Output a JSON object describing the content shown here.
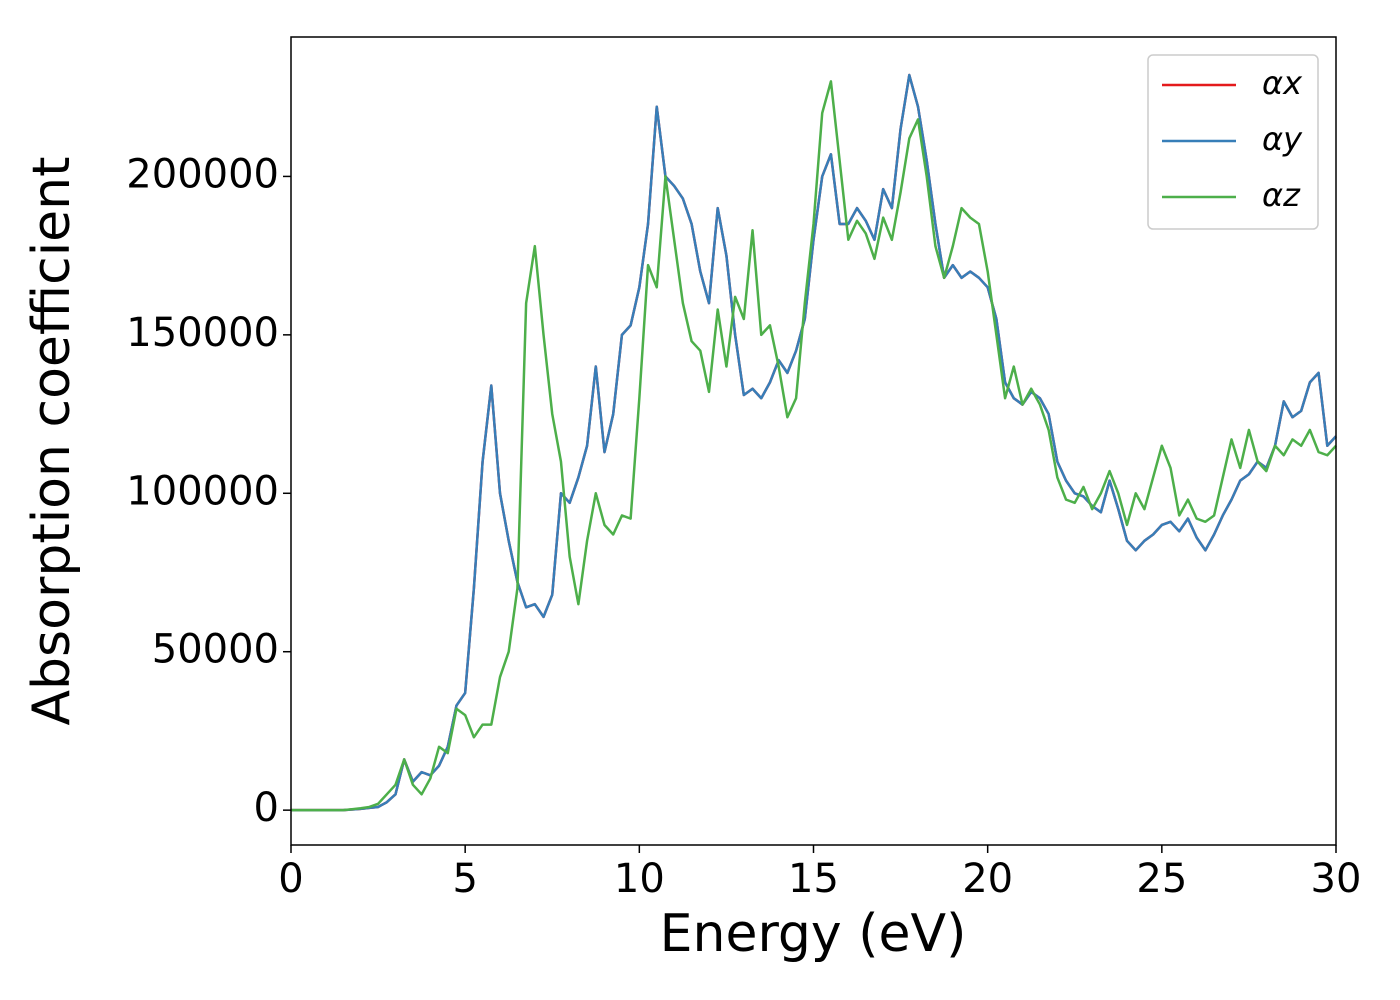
{
  "chart_data": {
    "type": "line",
    "xlabel": "Energy (eV)",
    "ylabel": "Absorption coefficient",
    "xlim": [
      0,
      30
    ],
    "xticks": [
      0,
      5,
      10,
      15,
      20,
      25,
      30
    ],
    "ylim": [
      -11000,
      244000
    ],
    "yticks": [
      0,
      50000,
      100000,
      150000,
      200000
    ],
    "legend": "upper right",
    "x": [
      0,
      0.25,
      0.5,
      0.75,
      1,
      1.25,
      1.5,
      1.75,
      2,
      2.25,
      2.5,
      2.75,
      3,
      3.25,
      3.5,
      3.75,
      4,
      4.25,
      4.5,
      4.75,
      5,
      5.25,
      5.5,
      5.75,
      6,
      6.25,
      6.5,
      6.75,
      7,
      7.25,
      7.5,
      7.75,
      8,
      8.25,
      8.5,
      8.75,
      9,
      9.25,
      9.5,
      9.75,
      10,
      10.25,
      10.5,
      10.75,
      11,
      11.25,
      11.5,
      11.75,
      12,
      12.25,
      12.5,
      12.75,
      13,
      13.25,
      13.5,
      13.75,
      14,
      14.25,
      14.5,
      14.75,
      15,
      15.25,
      15.5,
      15.75,
      16,
      16.25,
      16.5,
      16.75,
      17,
      17.25,
      17.5,
      17.75,
      18,
      18.25,
      18.5,
      18.75,
      19,
      19.25,
      19.5,
      19.75,
      20,
      20.25,
      20.5,
      20.75,
      21,
      21.25,
      21.5,
      21.75,
      22,
      22.25,
      22.5,
      22.75,
      23,
      23.25,
      23.5,
      23.75,
      24,
      24.25,
      24.5,
      24.75,
      25,
      25.25,
      25.5,
      25.75,
      26,
      26.25,
      26.5,
      26.75,
      27,
      27.25,
      27.5,
      27.75,
      28,
      28.25,
      28.5,
      28.75,
      29,
      29.25,
      29.5,
      29.75,
      30
    ],
    "series": [
      {
        "name": "αx",
        "color": "#e41a1c",
        "values": [
          0,
          0,
          0,
          0,
          0,
          0,
          0,
          200,
          400,
          700,
          1000,
          2500,
          5000,
          16000,
          9000,
          12000,
          11000,
          14000,
          20000,
          33000,
          37000,
          70000,
          110000,
          134000,
          100000,
          85000,
          72000,
          64000,
          65000,
          61000,
          68000,
          100000,
          97000,
          105000,
          115000,
          140000,
          113000,
          125000,
          150000,
          153000,
          165000,
          185000,
          222000,
          200000,
          197000,
          193000,
          185000,
          170000,
          160000,
          190000,
          175000,
          150000,
          131000,
          133000,
          130000,
          135000,
          142000,
          138000,
          145000,
          155000,
          180000,
          200000,
          207000,
          185000,
          185000,
          190000,
          186000,
          180000,
          196000,
          190000,
          215000,
          232000,
          222000,
          205000,
          185000,
          168000,
          172000,
          168000,
          170000,
          168000,
          165000,
          155000,
          135000,
          130000,
          128000,
          132000,
          130000,
          125000,
          110000,
          104000,
          100000,
          99000,
          96000,
          94000,
          104000,
          95000,
          85000,
          82000,
          85000,
          87000,
          90000,
          91000,
          88000,
          92000,
          86000,
          82000,
          87000,
          93000,
          98000,
          104000,
          106000,
          110000,
          108000,
          115000,
          129000,
          124000,
          126000,
          135000,
          138000,
          115000,
          118000
        ]
      },
      {
        "name": "αy",
        "color": "#377eb8",
        "values": [
          0,
          0,
          0,
          0,
          0,
          0,
          0,
          200,
          400,
          700,
          1000,
          2500,
          5000,
          16000,
          9000,
          12000,
          11000,
          14000,
          20000,
          33000,
          37000,
          70000,
          110000,
          134000,
          100000,
          85000,
          72000,
          64000,
          65000,
          61000,
          68000,
          100000,
          97000,
          105000,
          115000,
          140000,
          113000,
          125000,
          150000,
          153000,
          165000,
          185000,
          222000,
          200000,
          197000,
          193000,
          185000,
          170000,
          160000,
          190000,
          175000,
          150000,
          131000,
          133000,
          130000,
          135000,
          142000,
          138000,
          145000,
          155000,
          180000,
          200000,
          207000,
          185000,
          185000,
          190000,
          186000,
          180000,
          196000,
          190000,
          215000,
          232000,
          222000,
          205000,
          185000,
          168000,
          172000,
          168000,
          170000,
          168000,
          165000,
          155000,
          135000,
          130000,
          128000,
          132000,
          130000,
          125000,
          110000,
          104000,
          100000,
          99000,
          96000,
          94000,
          104000,
          95000,
          85000,
          82000,
          85000,
          87000,
          90000,
          91000,
          88000,
          92000,
          86000,
          82000,
          87000,
          93000,
          98000,
          104000,
          106000,
          110000,
          108000,
          115000,
          129000,
          124000,
          126000,
          135000,
          138000,
          115000,
          118000
        ]
      },
      {
        "name": "αz",
        "color": "#4daf4a",
        "values": [
          0,
          0,
          0,
          0,
          0,
          0,
          0,
          300,
          600,
          1000,
          2000,
          5000,
          8000,
          16000,
          8000,
          5000,
          10000,
          20000,
          18000,
          32000,
          30000,
          23000,
          27000,
          27000,
          42000,
          50000,
          70000,
          160000,
          178000,
          150000,
          125000,
          110000,
          80000,
          65000,
          85000,
          100000,
          90000,
          87000,
          93000,
          92000,
          130000,
          172000,
          165000,
          200000,
          180000,
          160000,
          148000,
          145000,
          132000,
          158000,
          140000,
          162000,
          155000,
          183000,
          150000,
          153000,
          140000,
          124000,
          130000,
          160000,
          185000,
          220000,
          230000,
          205000,
          180000,
          186000,
          182000,
          174000,
          187000,
          180000,
          195000,
          212000,
          218000,
          200000,
          178000,
          168000,
          178000,
          190000,
          187000,
          185000,
          170000,
          150000,
          130000,
          140000,
          128000,
          133000,
          128000,
          120000,
          105000,
          98000,
          97000,
          102000,
          95000,
          100000,
          107000,
          100000,
          90000,
          100000,
          95000,
          105000,
          115000,
          108000,
          93000,
          98000,
          92000,
          91000,
          93000,
          105000,
          117000,
          108000,
          120000,
          110000,
          107000,
          115000,
          112000,
          117000,
          115000,
          120000,
          113000,
          112000,
          115000
        ]
      }
    ]
  }
}
